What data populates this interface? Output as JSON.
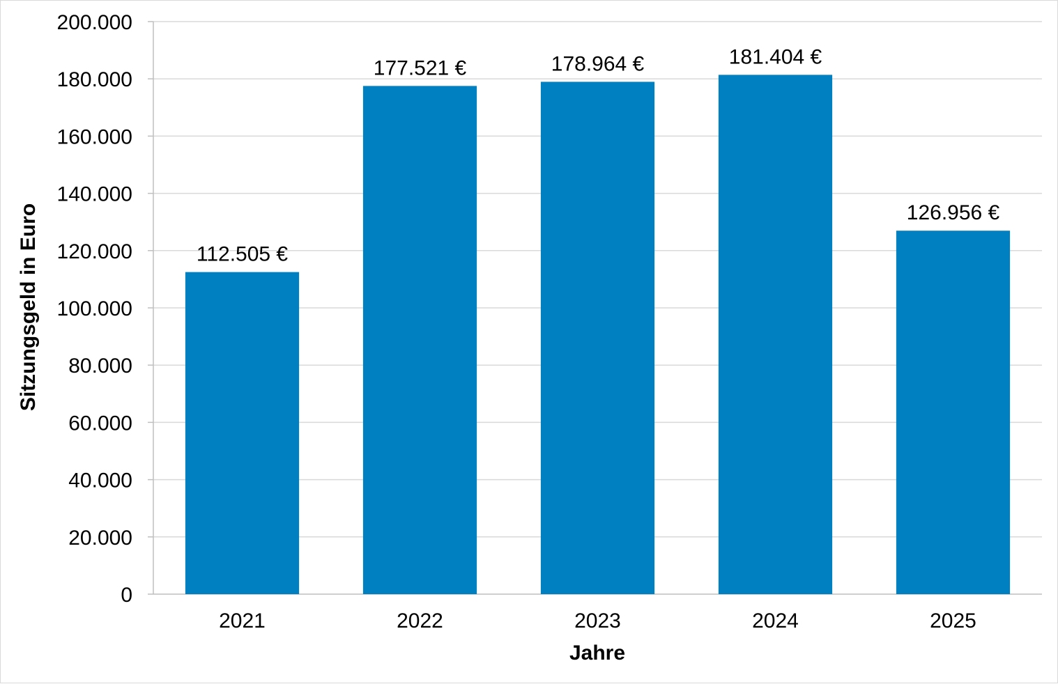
{
  "chart_data": {
    "type": "bar",
    "categories": [
      "2021",
      "2022",
      "2023",
      "2024",
      "2025"
    ],
    "values": [
      112505,
      177521,
      178964,
      181404,
      126956
    ],
    "data_labels": [
      "112.505 €",
      "177.521 €",
      "178.964 €",
      "181.404 €",
      "126.956 €"
    ],
    "xlabel": "Jahre",
    "ylabel": "Sitzungsgeld in Euro",
    "ylim": [
      0,
      200000
    ],
    "y_ticks": [
      0,
      20000,
      40000,
      60000,
      80000,
      100000,
      120000,
      140000,
      160000,
      180000,
      200000
    ],
    "y_tick_labels": [
      "0",
      "20.000",
      "40.000",
      "60.000",
      "80.000",
      "100.000",
      "120.000",
      "140.000",
      "160.000",
      "180.000",
      "200.000"
    ],
    "grid": true,
    "legend": false,
    "bar_color": "#0080c0",
    "grid_color": "#d9d9d9"
  }
}
